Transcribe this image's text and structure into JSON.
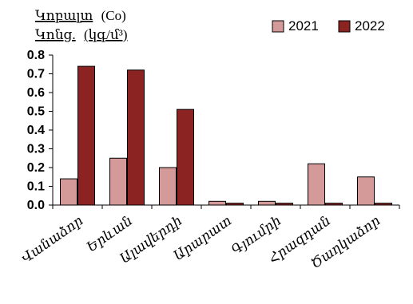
{
  "chart_data": {
    "type": "bar",
    "title_line1_word": "Կոբալտ",
    "title_line1_unit": "(Co)",
    "title_line2_word": "Կոնց.",
    "title_line2_unit": "(կգ/մ³)",
    "categories": [
      "Վանաձոր",
      "Երևան",
      "Ալավերդի",
      "Արարատ",
      "Գյումրի",
      "Հրազդան",
      "Ծաղկաձոր"
    ],
    "series": [
      {
        "name": "2021",
        "color": "#d49a9a",
        "values": [
          0.14,
          0.25,
          0.2,
          0.02,
          0.02,
          0.22,
          0.15
        ]
      },
      {
        "name": "2022",
        "color": "#8b2323",
        "values": [
          0.74,
          0.72,
          0.51,
          0.01,
          0.01,
          0.01,
          0.01
        ]
      }
    ],
    "ylim": [
      0,
      0.8
    ],
    "y_ticks": [
      "0.0",
      "0.1",
      "0.2",
      "0.3",
      "0.4",
      "0.5",
      "0.6",
      "0.7",
      "0.8"
    ],
    "grid": false,
    "legend_position": "top-right"
  }
}
